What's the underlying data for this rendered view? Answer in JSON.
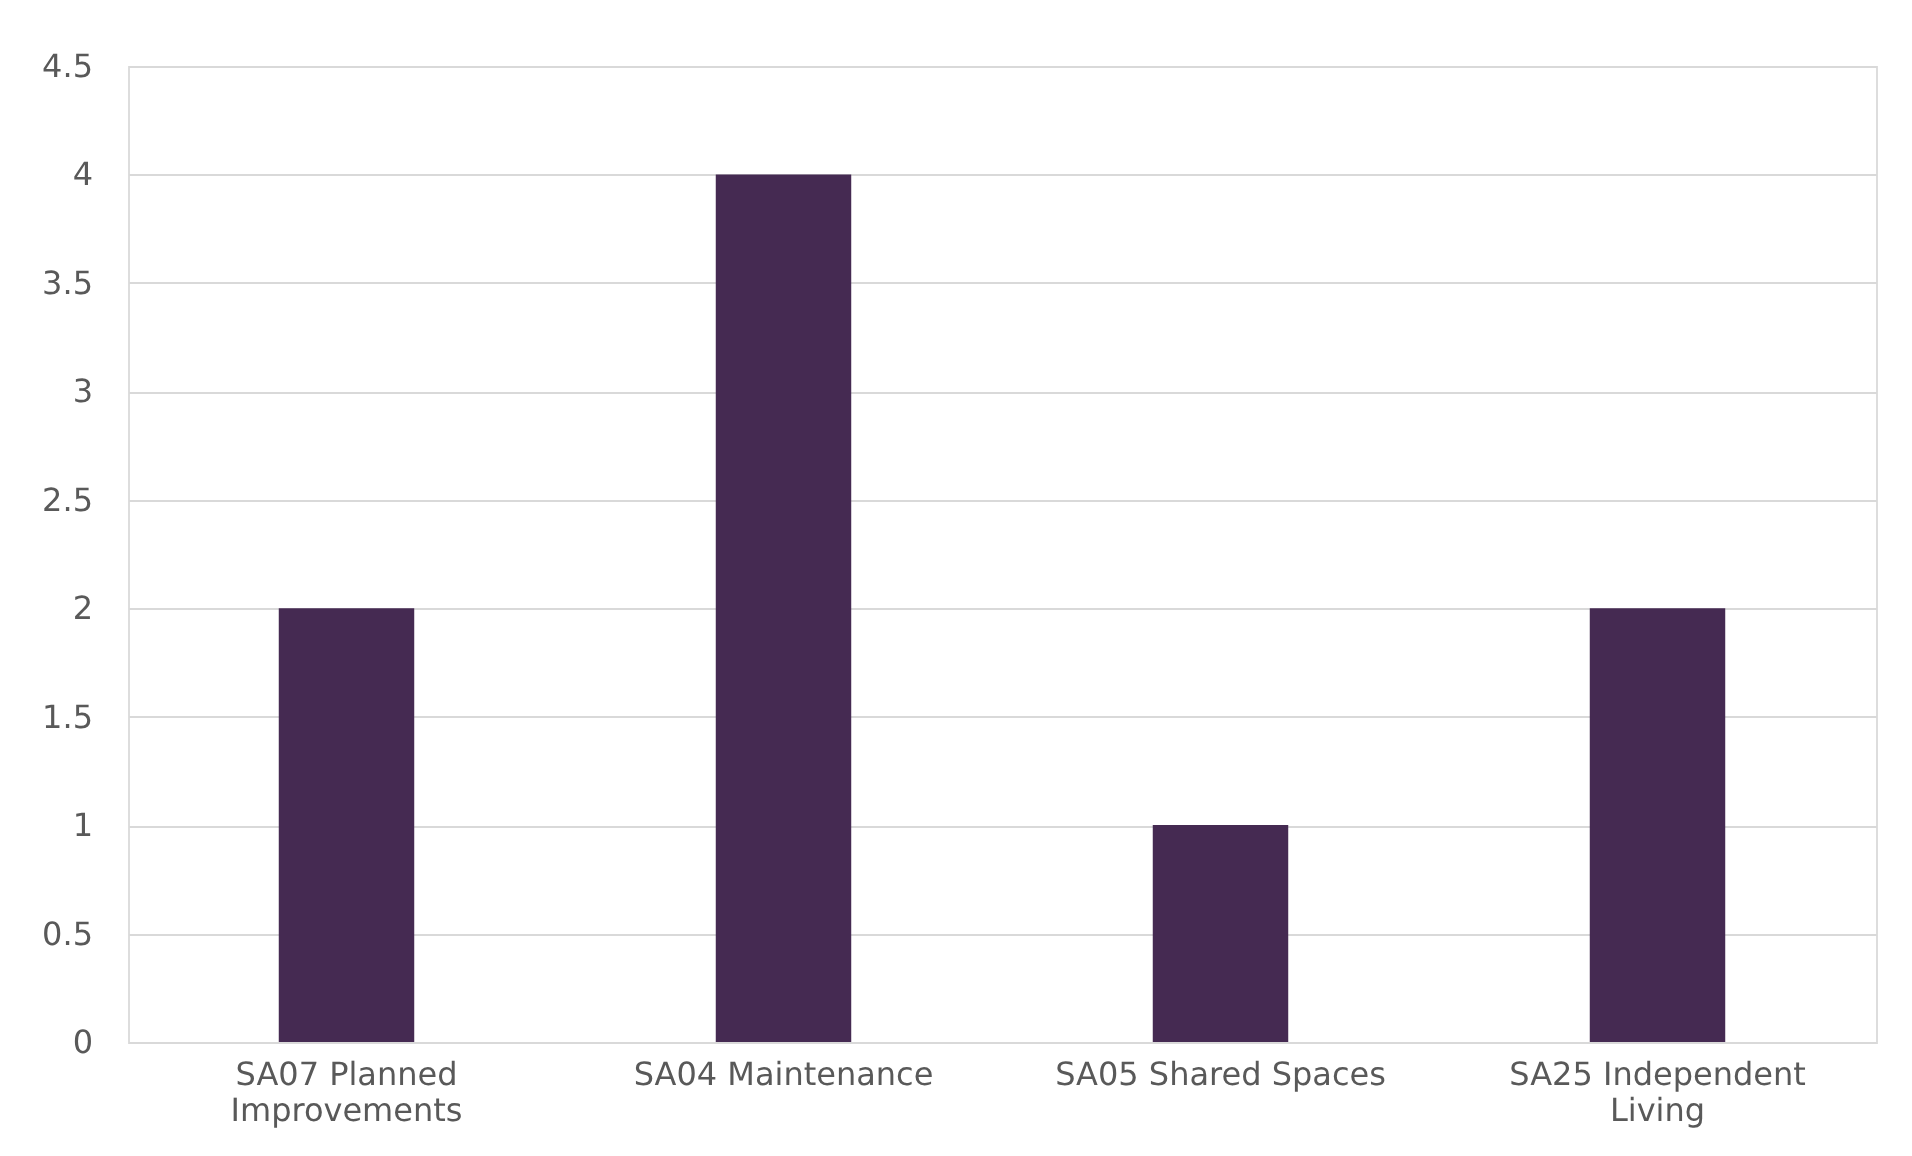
{
  "chart_data": {
    "type": "bar",
    "categories": [
      "SA07 Planned Improvements",
      "SA04 Maintenance",
      "SA05 Shared Spaces",
      "SA25 Independent Living"
    ],
    "values": [
      2,
      4,
      1,
      2
    ],
    "color": "#452a52",
    "ylim": [
      0,
      4.5
    ],
    "yticks": [
      0,
      0.5,
      1,
      1.5,
      2,
      2.5,
      3,
      3.5,
      4,
      4.5
    ],
    "grid": "y"
  }
}
